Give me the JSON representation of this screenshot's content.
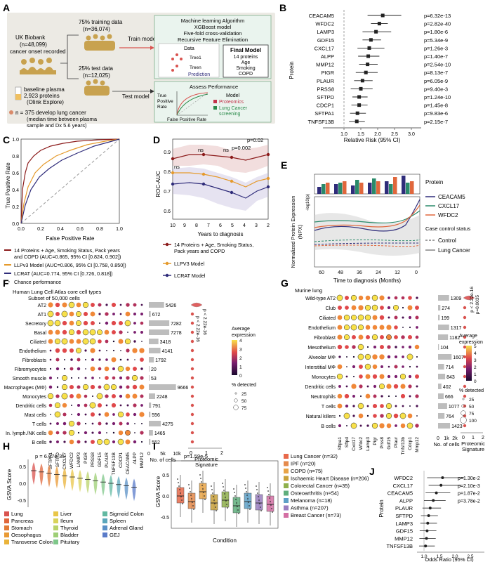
{
  "panel_letters": [
    "A",
    "B",
    "C",
    "D",
    "E",
    "F",
    "G",
    "H",
    "I",
    "J"
  ],
  "panelA": {
    "biobank_line1": "UK Biobank",
    "biobank_line2": "(n=48,099)",
    "biobank_line3": "cancer onset recorded",
    "train_pct": "75% training data",
    "train_n": "(n=36,074)",
    "test_pct": "25% test data",
    "test_n": "(n=12,025)",
    "baseline_line1": "baseline plasma",
    "baseline_line2": "2,923 proteins",
    "baseline_line3": "(Olink Explore)",
    "train_model": "Train\nmodel",
    "test_model": "Test model",
    "ml_line1": "Machine learning Algorithm",
    "ml_line2": "XGBoost model",
    "ml_line3": "Five-fold cross-validation",
    "ml_line4": "Recursive Feature Elimination",
    "data": "Data",
    "tree1": "Tree1",
    "treen": "Treen",
    "prediction": "Prediction",
    "final_model": "Final Model",
    "final_items": [
      "14 proteins",
      "Age",
      "Smoking",
      "COPD"
    ],
    "assess": "Assess Performance",
    "tpr": "True\nPositive\nRate",
    "fpr": "False Positive Rate",
    "model": "Model",
    "model_items": [
      "Proteomics",
      "Lung Cancer\nscreening"
    ],
    "footnote_line1": "n = 375 develop lung cancer",
    "footnote_line2": "(median time between plasma",
    "footnote_line3": "sample and Dx 5.6 years)"
  },
  "panelB": {
    "ylabel": "Protein",
    "xlabel": "Relative Risk (95% CI)",
    "proteins": [
      "CEACAM5",
      "WFDC2",
      "LAMP3",
      "GDF15",
      "CXCL17",
      "ALPP",
      "MMP12",
      "PIGR",
      "PLAUR",
      "PRSS8",
      "SFTPD",
      "CDCP1",
      "SFTPA1",
      "TNFSF13B"
    ],
    "pvals": [
      "p=6.32e-13",
      "p=2.82e-40",
      "p=1.80e-6",
      "p=5.34e-9",
      "p=1.26e-3",
      "p=1.40e-7",
      "p=2.54e-10",
      "p=8.13e-7",
      "p=6.05e-9",
      "p=9.40e-3",
      "p=1.24e-10",
      "p=1.45e-8",
      "p=9.83e-6",
      "p=2.15e-7"
    ],
    "ticks": [
      "1.0",
      "1.5",
      "2.0",
      "2.5",
      "3.0"
    ]
  },
  "panelC": {
    "xlabel": "False Positive Rate",
    "ylabel": "True Positive Rate",
    "ticks": [
      "0.0",
      "0.2",
      "0.4",
      "0.6",
      "0.8",
      "1.0"
    ],
    "legend": [
      "14 Proteins + Age, Smoking Status, Pack years",
      "and COPD (AUC=0.865, 95% CI [0.824, 0.902])",
      "LLPv3 Model (AUC=0.806, 95% CI [0.758, 0.850])",
      "LCRAT (AUC=0.774, 95% CI [0.726, 0.818])",
      "Chance performance"
    ],
    "colors": {
      "prot": "#8b1a1a",
      "llp": "#e59a2c",
      "lcrat": "#2f2c7a"
    }
  },
  "panelD": {
    "ylabel": "ROC-AUC",
    "xlabel": "Years to diagnosis",
    "xticks": [
      "10",
      "9",
      "8",
      "7",
      "6",
      "5",
      "4",
      "3",
      "2"
    ],
    "yticks": [
      "0.6",
      "0.7",
      "0.8",
      "0.9"
    ],
    "annotations": [
      "ns",
      "ns",
      "ns",
      "p=0.002",
      "p=0.02"
    ],
    "legend": [
      "14 Proteins + Age, Smoking Status,",
      "Pack years and COPD",
      "LLPV3 Model",
      "LCRAT Model"
    ]
  },
  "panelE": {
    "ylabel": "Normalized Protein Expression\n(NPX)",
    "xlabel": "Time to diagnosis (Months)",
    "topylabel": "-log10(p)",
    "xticks": [
      "60",
      "48",
      "36",
      "24",
      "12",
      "0"
    ],
    "legend_title": "Protein",
    "legend": [
      "CEACAM5",
      "CXCL17",
      "WFDC2"
    ],
    "status_title": "Case control status",
    "status": [
      "Control",
      "Lung Cancer"
    ]
  },
  "panelF": {
    "title1": "Human Lung Cell Atlas core cell types",
    "title2": "Subset of 50,000 cells",
    "cells": [
      "AT2",
      "AT1",
      "Secretory",
      "Basal",
      "Ciliated",
      "Endothelium",
      "Fibroblasts",
      "Fibromyocytes",
      "Smooth muscle",
      "Macrophages (MΦ)",
      "Monocytes",
      "Dendritic cells",
      "Mast cells",
      "T cells",
      "In. lymph./NK cells",
      "B cells"
    ],
    "counts": [
      "5426",
      "672",
      "7282",
      "7278",
      "3418",
      "4141",
      "1792",
      "20",
      "53",
      "9666",
      "2248",
      "791",
      "556",
      "4275",
      "1465",
      "552"
    ],
    "genes": [
      "SFTPA1",
      "SFTPD",
      "CXCL17",
      "WFDC2",
      "LAMP3",
      "PIGR",
      "PRSS8",
      "GDF15",
      "PLAUR",
      "TNFSF13B",
      "CDCP1",
      "CEACAM5",
      "ALPP",
      "MMP12"
    ],
    "count_xlabel": "No. of cells",
    "count_ticks": [
      "0",
      "5k",
      "10k"
    ],
    "sig_xlabel": "Proteomic\nSignature",
    "sig_ticks": [
      "0",
      "1",
      "2"
    ],
    "pval1": "p < 2.22e-16",
    "pval2": "p < 2.22e-16",
    "legend_title1": "Average",
    "legend_title2": "expression",
    "legend_ticks": [
      "4",
      "3",
      "2",
      "1",
      "0"
    ],
    "detected_title": "% detected",
    "detected": [
      "25",
      "50",
      "75"
    ]
  },
  "panelG": {
    "title": "Murine lung",
    "cells": [
      "Wild-type AT2",
      "Club",
      "Ciliated",
      "Endothelium",
      "Fibroblast",
      "Mesothelium",
      "Alveolar MΦ",
      "Interstitial MΦ",
      "Monocytes",
      "Dendritic cells",
      "Neutrophils",
      "T cells",
      "Natural killers",
      "B cells"
    ],
    "counts": [
      "1309",
      "274",
      "199",
      "1317",
      "1182",
      "104",
      "1607",
      "714",
      "843",
      "402",
      "666",
      "1077",
      "764",
      "1423"
    ],
    "genes": [
      "Sftpa1",
      "Sftpd",
      "Cxcl17",
      "Wfdc2",
      "Lamp3",
      "Pigr",
      "Prss8",
      "Gdf15",
      "Plaur",
      "Tnfsf13b",
      "Cdcp1",
      "Mmp12"
    ],
    "count_xlabel": "No. of cells",
    "count_ticks": [
      "0",
      "1k",
      "2k"
    ],
    "sig_xlabel": "Proteomic\nSignature",
    "sig_ticks": [
      "0",
      "1",
      "2"
    ],
    "pval1": "p < 2.22e-16",
    "pval2": "p=0.0035",
    "legend_title1": "Average",
    "legend_title2": "expression",
    "legend_ticks": [
      "5",
      "4",
      "3",
      "2",
      "1",
      "0"
    ],
    "detected_title": "% detected",
    "detected": [
      "25",
      "50",
      "75",
      "100"
    ]
  },
  "panelH": {
    "ylabel": "GSVA Score",
    "pval": "p = 6.07e-35",
    "yticks": [
      "0.5",
      "0.0",
      "-0.5"
    ],
    "legend": [
      "Lung",
      "Pancreas",
      "Stomach",
      "Oesophagus",
      "Transverse Colon",
      "Liver",
      "Ileum",
      "Thyroid",
      "Bladder",
      "Pituitary",
      "Sigmoid Colon",
      "Spleen",
      "Adrenal Gland",
      "GEJ"
    ],
    "colors": [
      "#d9534f",
      "#e0673c",
      "#e27b37",
      "#e99a34",
      "#eab33a",
      "#e9c648",
      "#d9d35a",
      "#b9d36a",
      "#9ecf76",
      "#7fc78a",
      "#62b9a2",
      "#5aa6bb",
      "#5a90c6",
      "#5a7bc9"
    ]
  },
  "panelI": {
    "ylabel": "GSVA Score",
    "xlabel": "Condition",
    "pval": "p=1.59e-5",
    "yticks": [
      "0.5",
      "0.0",
      "-0.5"
    ],
    "legend": [
      "Lung Cancer (n=32)",
      "IPF (n=20)",
      "COPD (n=75)",
      "Ischaemic Heart Disease (n=206)",
      "Colorectal Cancer (n=35)",
      "Osteoarthritis (n=54)",
      "Melanoma (n=18)",
      "Asthma (n=207)",
      "Breast Cancer (n=73)"
    ],
    "colors": [
      "#e8694a",
      "#e58a4c",
      "#e8a446",
      "#c8a13a",
      "#8fb04c",
      "#5fae7c",
      "#5ea0c7",
      "#9a7ec0",
      "#d46fa4"
    ]
  },
  "panelJ": {
    "ylabel": "Protein",
    "xlabel": "Odds Ratio (95% CI)",
    "proteins": [
      "WFDC2",
      "CXCL17",
      "CEACAM5",
      "ALPP",
      "PLAUR",
      "SFTPD",
      "LAMP3",
      "GDF15",
      "MMP12",
      "TNFSF13B"
    ],
    "pvals": [
      "p=1.30e-2",
      "p=2.10e-3",
      "p=1.87e-2",
      "p=3.78e-2"
    ],
    "ticks": [
      "1.0",
      "1.5",
      "2.0",
      "2.5"
    ]
  }
}
